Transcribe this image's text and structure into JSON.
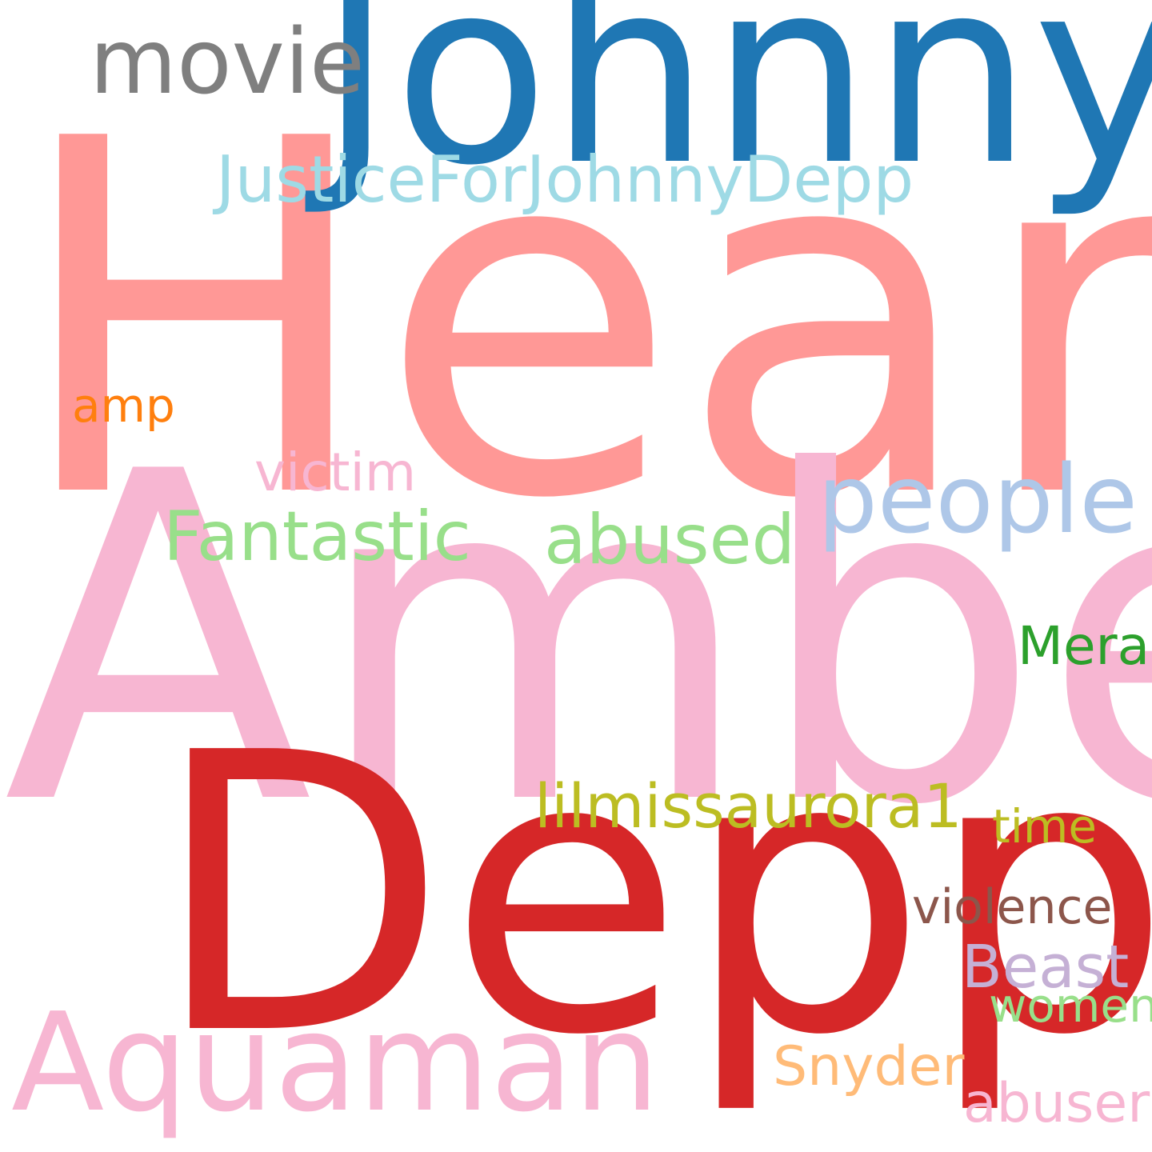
{
  "words": [
    {
      "key": "heard",
      "text": "Heard",
      "color": "#ff9896"
    },
    {
      "key": "amber",
      "text": "Amber",
      "color": "#f7b6d2"
    },
    {
      "key": "depp",
      "text": "Depp",
      "color": "#d62728"
    },
    {
      "key": "johnny",
      "text": "Johnny",
      "color": "#1f77b4"
    },
    {
      "key": "aquaman",
      "text": "Aquaman",
      "color": "#f7b6d2"
    },
    {
      "key": "movie",
      "text": "movie",
      "color": "#7f7f7f"
    },
    {
      "key": "people",
      "text": "people",
      "color": "#aec7e8"
    },
    {
      "key": "justice",
      "text": "JusticeForJohnnyDepp",
      "color": "#9edae5"
    },
    {
      "key": "fantastic",
      "text": "Fantastic",
      "color": "#98df8a"
    },
    {
      "key": "abused",
      "text": "abused",
      "color": "#98df8a"
    },
    {
      "key": "victim",
      "text": "victim",
      "color": "#f7b6d2"
    },
    {
      "key": "mera",
      "text": "Mera",
      "color": "#2ca02c"
    },
    {
      "key": "lilmiss",
      "text": "lilmissaurora1",
      "color": "#bcbd22"
    },
    {
      "key": "time",
      "text": "time",
      "color": "#bcbd22"
    },
    {
      "key": "violence",
      "text": "violence",
      "color": "#8c564b"
    },
    {
      "key": "beast",
      "text": "Beast",
      "color": "#c5b0d5"
    },
    {
      "key": "women",
      "text": "women",
      "color": "#98df8a"
    },
    {
      "key": "snyder",
      "text": "Snyder",
      "color": "#ffbb78"
    },
    {
      "key": "abuser",
      "text": "abuser",
      "color": "#f7b6d2"
    },
    {
      "key": "amp",
      "text": "amp",
      "color": "#ff7f0e"
    }
  ]
}
